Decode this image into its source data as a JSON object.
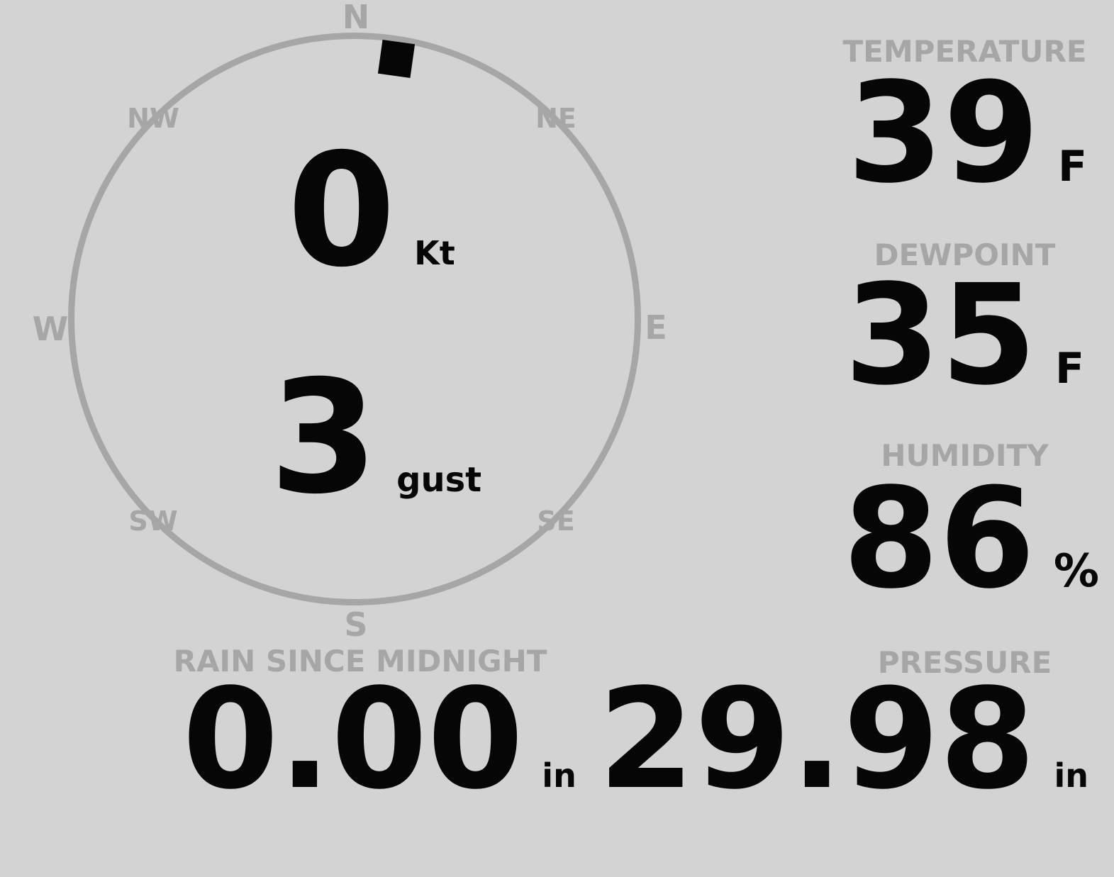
{
  "display": {
    "background_color": "#d3d3d3",
    "muted_color": "#a6a6a6",
    "value_color": "#060606"
  },
  "compass": {
    "cardinals": {
      "n": "N",
      "e": "E",
      "s": "S",
      "w": "W"
    },
    "intercardinals": {
      "nw": "NW",
      "ne": "NE",
      "se": "SE",
      "sw": "SW"
    },
    "wind_speed": {
      "value": "0",
      "unit": "Kt"
    },
    "wind_gust": {
      "value": "3",
      "unit": "gust"
    },
    "wind_direction_deg": "9"
  },
  "metrics": {
    "temperature": {
      "label": "TEMPERATURE",
      "value": "39",
      "unit": "F"
    },
    "dewpoint": {
      "label": "DEWPOINT",
      "value": "35",
      "unit": "F"
    },
    "humidity": {
      "label": "HUMIDITY",
      "value": "86",
      "unit": "%"
    },
    "rain": {
      "label": "RAIN SINCE MIDNIGHT",
      "value": "0.00",
      "unit": "in"
    },
    "pressure": {
      "label": "PRESSURE",
      "value": "29.98",
      "unit": "in"
    }
  }
}
